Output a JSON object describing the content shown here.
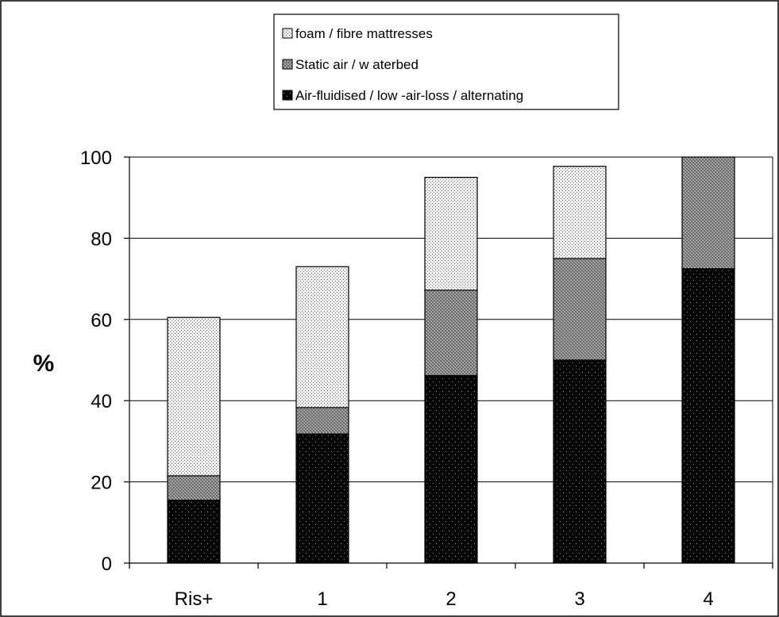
{
  "chart_data": {
    "type": "bar",
    "stacked": true,
    "categories": [
      "Ris+",
      "1",
      "2",
      "3",
      "4"
    ],
    "series": [
      {
        "name": "Air-fluidised / low -air-loss / alternating",
        "values": [
          15.5,
          31.8,
          46.2,
          50.0,
          72.5
        ],
        "color": "#000000",
        "pattern": "dark-dots"
      },
      {
        "name": "Static air / w aterbed",
        "values": [
          6.0,
          6.5,
          21.0,
          25.0,
          27.5
        ],
        "color": "#8a8a8a",
        "pattern": "grey-check"
      },
      {
        "name": "foam / fibre mattresses",
        "values": [
          39.0,
          34.7,
          27.8,
          22.7,
          0
        ],
        "color": "#dcdcdc",
        "pattern": "light-dots"
      }
    ],
    "legend_order": [
      "foam / fibre mattresses",
      "Static air / w aterbed",
      "Air-fluidised / low -air-loss / alternating"
    ],
    "xlabel": "",
    "ylabel": "%",
    "ylim": [
      0,
      100
    ],
    "yticks": [
      0,
      20,
      40,
      60,
      80,
      100
    ],
    "grid": true,
    "legend_position": "top"
  }
}
